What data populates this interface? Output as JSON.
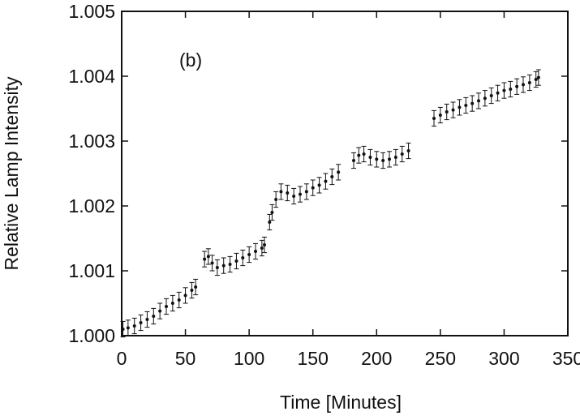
{
  "chart_data": {
    "type": "scatter",
    "title": "",
    "annotation": "(b)",
    "xlabel": "Time [Minutes]",
    "ylabel": "Relative Lamp Intensity",
    "xlim": [
      0,
      350
    ],
    "ylim": [
      1.0,
      1.005
    ],
    "xticks": [
      "0",
      "50",
      "100",
      "150",
      "200",
      "250",
      "300",
      "350"
    ],
    "yticks": [
      "1.000",
      "1.001",
      "1.002",
      "1.003",
      "1.004",
      "1.005"
    ],
    "grid": false,
    "error_bars": true,
    "series": [
      {
        "points": [
          [
            1,
            1.0001
          ],
          [
            5,
            1.00012
          ],
          [
            10,
            1.00015
          ],
          [
            15,
            1.0002
          ],
          [
            20,
            1.00025
          ],
          [
            25,
            1.0003
          ],
          [
            30,
            1.00038
          ],
          [
            35,
            1.00045
          ],
          [
            40,
            1.0005
          ],
          [
            45,
            1.00055
          ],
          [
            50,
            1.00062
          ],
          [
            55,
            1.0007
          ],
          [
            58,
            1.00075
          ],
          [
            65,
            1.00118
          ],
          [
            68,
            1.00122
          ],
          [
            71,
            1.00112
          ],
          [
            75,
            1.00105
          ],
          [
            80,
            1.00108
          ],
          [
            85,
            1.0011
          ],
          [
            90,
            1.00115
          ],
          [
            95,
            1.0012
          ],
          [
            100,
            1.00125
          ],
          [
            105,
            1.0013
          ],
          [
            110,
            1.00135
          ],
          [
            112,
            1.0014
          ],
          [
            116,
            1.00175
          ],
          [
            118,
            1.0019
          ],
          [
            121,
            1.0021
          ],
          [
            125,
            1.00222
          ],
          [
            130,
            1.0022
          ],
          [
            135,
            1.00215
          ],
          [
            140,
            1.00218
          ],
          [
            145,
            1.00222
          ],
          [
            150,
            1.00228
          ],
          [
            155,
            1.00232
          ],
          [
            160,
            1.00238
          ],
          [
            165,
            1.00245
          ],
          [
            170,
            1.00252
          ],
          [
            182,
            1.0027
          ],
          [
            186,
            1.00278
          ],
          [
            190,
            1.0028
          ],
          [
            195,
            1.00275
          ],
          [
            200,
            1.00272
          ],
          [
            205,
            1.0027
          ],
          [
            210,
            1.00272
          ],
          [
            215,
            1.00275
          ],
          [
            220,
            1.0028
          ],
          [
            225,
            1.00285
          ],
          [
            245,
            1.00335
          ],
          [
            250,
            1.0034
          ],
          [
            255,
            1.00345
          ],
          [
            260,
            1.00348
          ],
          [
            265,
            1.00352
          ],
          [
            270,
            1.00355
          ],
          [
            275,
            1.00358
          ],
          [
            280,
            1.00362
          ],
          [
            285,
            1.00366
          ],
          [
            290,
            1.0037
          ],
          [
            295,
            1.00374
          ],
          [
            300,
            1.00378
          ],
          [
            305,
            1.0038
          ],
          [
            310,
            1.00384
          ],
          [
            315,
            1.00387
          ],
          [
            320,
            1.0039
          ],
          [
            325,
            1.00395
          ],
          [
            327,
            1.00398
          ]
        ],
        "error": 0.00012,
        "color": "#111111"
      }
    ]
  }
}
